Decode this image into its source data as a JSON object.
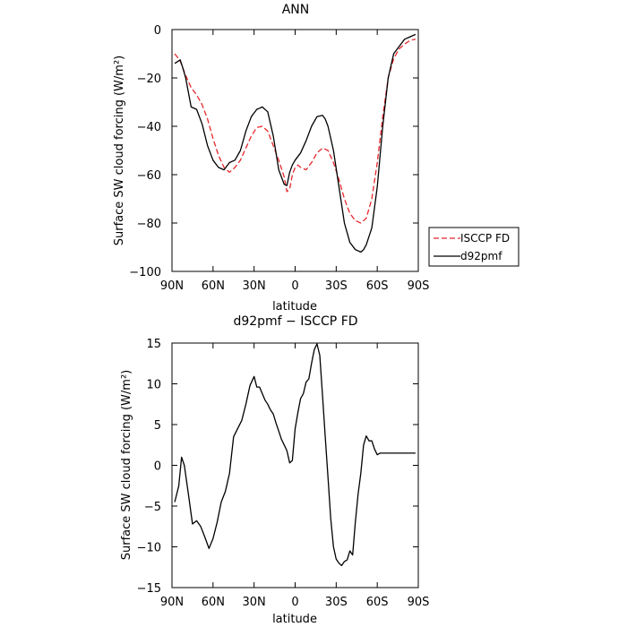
{
  "chart_data": [
    {
      "type": "line",
      "title": "ANN",
      "xlabel": "latitude",
      "ylabel": "Surface SW cloud forcing (W/m²)",
      "xlim": [
        90,
        -90
      ],
      "ylim": [
        -100,
        0
      ],
      "x_ticks": [
        "90N",
        "60N",
        "30N",
        "0",
        "30S",
        "60S",
        "90S"
      ],
      "x_tick_values": [
        90,
        60,
        30,
        0,
        -30,
        -60,
        -90
      ],
      "y_ticks": [
        "0",
        "−20",
        "−40",
        "−60",
        "−80",
        "−100"
      ],
      "y_tick_values": [
        0,
        -20,
        -40,
        -60,
        -80,
        -100
      ],
      "legend": {
        "placement": "right",
        "entries": [
          "ISCCP FD",
          "d92pmf"
        ]
      },
      "series": [
        {
          "name": "ISCCP FD",
          "color": "#e8262b",
          "dash": "dashed",
          "x": [
            88,
            84,
            80,
            76,
            72,
            68,
            64,
            60,
            56,
            52,
            48,
            44,
            40,
            36,
            32,
            28,
            24,
            20,
            16,
            12,
            8,
            6,
            4,
            2,
            0,
            -2,
            -4,
            -8,
            -12,
            -16,
            -20,
            -24,
            -28,
            -32,
            -36,
            -40,
            -44,
            -48,
            -52,
            -56,
            -60,
            -64,
            -68,
            -72,
            -76,
            -80,
            -84,
            -88
          ],
          "values": [
            -10,
            -13,
            -19,
            -24,
            -27,
            -31,
            -37,
            -45,
            -52,
            -57,
            -59,
            -57,
            -54,
            -49,
            -44,
            -40.5,
            -40,
            -42,
            -48,
            -54,
            -61,
            -67,
            -66,
            -60,
            -57,
            -56,
            -57,
            -58,
            -55,
            -51,
            -49,
            -50,
            -55,
            -62,
            -70,
            -76,
            -79,
            -80,
            -78,
            -70,
            -55,
            -36,
            -20,
            -12,
            -8,
            -6,
            -4.5,
            -4
          ]
        },
        {
          "name": "d92pmf",
          "color": "#000000",
          "dash": "solid",
          "x": [
            88,
            84,
            82,
            80,
            76,
            72,
            68,
            64,
            60,
            56,
            52,
            48,
            44,
            40,
            36,
            32,
            28,
            26,
            24,
            20,
            16,
            12,
            8,
            6,
            4,
            2,
            0,
            -4,
            -8,
            -12,
            -16,
            -20,
            -22,
            -24,
            -28,
            -32,
            -36,
            -40,
            -44,
            -48,
            -50,
            -52,
            -56,
            -60,
            -64,
            -68,
            -72,
            -76,
            -80,
            -84,
            -88
          ],
          "values": [
            -14,
            -12.5,
            -16,
            -20,
            -32,
            -33,
            -39,
            -48,
            -54,
            -57,
            -58,
            -55,
            -54,
            -50,
            -42,
            -36,
            -33,
            -32.5,
            -32,
            -34,
            -44,
            -58,
            -64,
            -64.5,
            -59,
            -56,
            -54,
            -51,
            -46,
            -40,
            -36,
            -35.5,
            -37,
            -40,
            -50,
            -65,
            -80,
            -88,
            -91,
            -92,
            -91,
            -89,
            -82,
            -65,
            -40,
            -20,
            -10,
            -7,
            -4,
            -3,
            -2
          ]
        }
      ]
    },
    {
      "type": "line",
      "title": "d92pmf − ISCCP FD",
      "xlabel": "latitude",
      "ylabel": "Surface SW cloud forcing (W/m²)",
      "xlim": [
        90,
        -90
      ],
      "ylim": [
        -15,
        15
      ],
      "x_ticks": [
        "90N",
        "60N",
        "30N",
        "0",
        "30S",
        "60S",
        "90S"
      ],
      "x_tick_values": [
        90,
        60,
        30,
        0,
        -30,
        -60,
        -90
      ],
      "y_ticks": [
        "15",
        "10",
        "5",
        "0",
        "−5",
        "−10",
        "−15"
      ],
      "y_tick_values": [
        15,
        10,
        5,
        0,
        -5,
        -10,
        -15
      ],
      "series": [
        {
          "color": "#000000",
          "dash": "solid",
          "x": [
            88,
            85,
            83,
            81,
            78,
            75,
            72,
            69,
            66,
            63,
            60,
            57,
            54,
            51,
            48,
            45,
            42,
            39,
            36,
            33,
            30,
            28,
            26,
            24,
            22,
            20,
            18,
            16,
            14,
            12,
            10,
            8,
            6,
            4,
            2,
            0,
            -2,
            -4,
            -6,
            -8,
            -10,
            -12,
            -14,
            -16,
            -18,
            -20,
            -22,
            -24,
            -26,
            -28,
            -30,
            -32,
            -34,
            -36,
            -38,
            -40,
            -42,
            -44,
            -46,
            -48,
            -50,
            -52,
            -54,
            -56,
            -58,
            -60,
            -62,
            -64,
            -66,
            -68,
            -70,
            -72,
            -74,
            -76,
            -78,
            -80,
            -82,
            -84,
            -86,
            -88
          ],
          "values": [
            -4.5,
            -2.5,
            1.0,
            0,
            -3.5,
            -7.2,
            -6.8,
            -7.5,
            -8.8,
            -10.2,
            -9.0,
            -7.0,
            -4.5,
            -3.2,
            -1.0,
            3.5,
            4.5,
            5.5,
            7.5,
            9.8,
            10.9,
            9.6,
            9.6,
            8.8,
            8.0,
            7.5,
            6.8,
            6.3,
            5.2,
            4.2,
            3.2,
            2.5,
            1.8,
            0.3,
            0.6,
            4.5,
            6.5,
            8.2,
            8.8,
            10.2,
            10.6,
            12.5,
            14.2,
            14.9,
            13.5,
            8.5,
            3.5,
            -1.5,
            -6.5,
            -10.0,
            -11.5,
            -12.0,
            -12.3,
            -11.8,
            -11.6,
            -10.5,
            -11.0,
            -7.0,
            -3.5,
            -1.0,
            2.5,
            3.6,
            3.0,
            3.0,
            2.0,
            1.3,
            1.5,
            1.5,
            1.5,
            1.5,
            1.5,
            1.5,
            1.5,
            1.5,
            1.5,
            1.5,
            1.5,
            1.5,
            1.5,
            1.5
          ]
        }
      ]
    }
  ]
}
